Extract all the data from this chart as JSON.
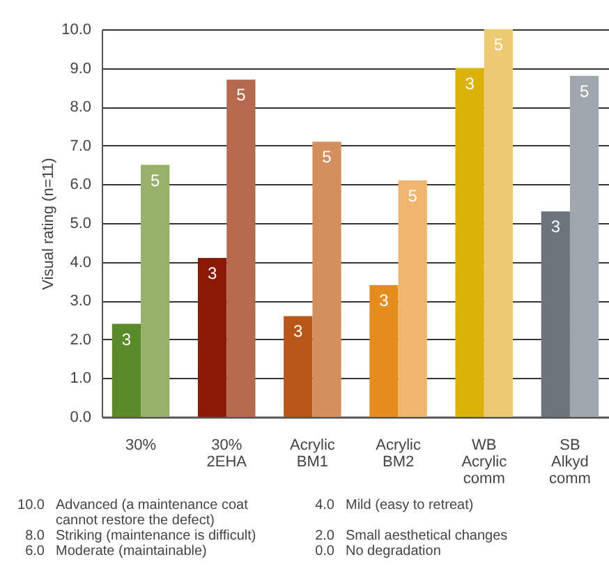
{
  "chart_data": {
    "type": "bar",
    "ylabel": "Visual rating (n=11)",
    "categories": [
      "30%",
      "30%\n2EHA",
      "Acrylic\nBM1",
      "Acrylic\nBM2",
      "WB\nAcrylic\ncomm",
      "SB\nAlkyd\ncomm"
    ],
    "series": [
      {
        "name": "3",
        "colors": [
          "#5a8a2a",
          "#8b1a05",
          "#b85717",
          "#e48d1e",
          "#dbb20a",
          "#6b757b"
        ],
        "values": [
          2.4,
          4.1,
          2.6,
          3.4,
          9.0,
          5.3
        ]
      },
      {
        "name": "5",
        "colors": [
          "#97b06a",
          "#b5694e",
          "#d48f5e",
          "#f0b570",
          "#eccb72",
          "#a0a8ae"
        ],
        "values": [
          6.5,
          8.7,
          7.1,
          6.1,
          10.0,
          8.8
        ]
      }
    ],
    "ylim": [
      0,
      10
    ],
    "yticks": [
      {
        "value": 0,
        "label": "0.0"
      },
      {
        "value": 1,
        "label": "1.0"
      },
      {
        "value": 2,
        "label": "2.0"
      },
      {
        "value": 3,
        "label": "3.0"
      },
      {
        "value": 4,
        "label": "4.0"
      },
      {
        "value": 5,
        "label": "5.0"
      },
      {
        "value": 6,
        "label": "6.0"
      },
      {
        "value": 7,
        "label": "7.0"
      },
      {
        "value": 8,
        "label": "8.0"
      },
      {
        "value": 9,
        "label": "9.0"
      },
      {
        "value": 10,
        "label": "10.0"
      }
    ],
    "grid": "y",
    "annotations": [
      "10.0 Advanced (a maintenance coat cannot restore the defect)",
      "8.0 Striking (maintenance is difficult)",
      "6.0 Moderate (maintainable)",
      "4.0 Mild (easy to retreat)",
      "2.0 Small aesthetical changes",
      "0.0 No degradation"
    ]
  }
}
